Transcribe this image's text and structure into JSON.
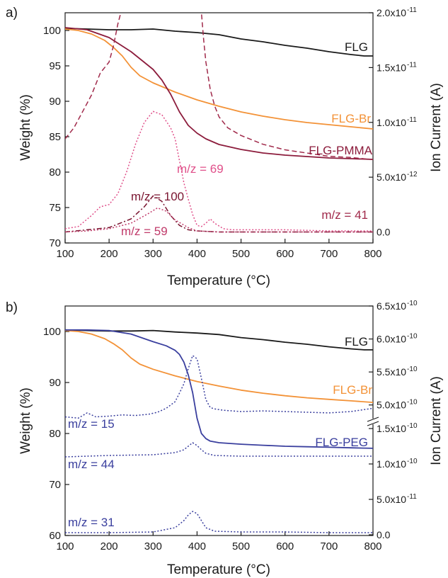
{
  "chart_data": [
    {
      "panel": "a)",
      "type": "line",
      "xlabel": "Temperature (°C)",
      "ylabel_left": "Weight (%)",
      "ylabel_right": "Ion Current (A)",
      "xlim": [
        100,
        800
      ],
      "ylim_left": [
        70,
        102.5
      ],
      "ylim_right": [
        -1e-12,
        2e-11
      ],
      "x_ticks": [
        100,
        200,
        300,
        400,
        500,
        600,
        700,
        800
      ],
      "y_left_ticks": [
        70,
        75,
        80,
        85,
        90,
        95,
        100
      ],
      "y_right_ticks": [
        0,
        5e-12,
        1e-11,
        1.5e-11,
        2e-11
      ],
      "y_right_tick_labels": [
        "0.0",
        "5.0x10",
        "1.0x10",
        "1.5x10",
        "2.0x10"
      ],
      "y_right_tick_exps": [
        "",
        "-12",
        "-11",
        "-11",
        "-11"
      ],
      "series": [
        {
          "name": "FLG",
          "axis": "left",
          "style": "solid",
          "color": "#1a1a1a",
          "x": [
            100,
            150,
            200,
            250,
            300,
            350,
            400,
            450,
            500,
            550,
            600,
            650,
            700,
            750,
            780,
            800
          ],
          "y": [
            100.3,
            100.2,
            100.1,
            100.1,
            100.2,
            99.9,
            99.7,
            99.4,
            98.8,
            98.4,
            97.9,
            97.5,
            97.0,
            96.6,
            96.4,
            96.4
          ]
        },
        {
          "name": "FLG-Br",
          "axis": "left",
          "style": "solid",
          "color": "#f39237",
          "x": [
            100,
            130,
            160,
            190,
            210,
            230,
            250,
            270,
            300,
            350,
            400,
            450,
            500,
            550,
            600,
            650,
            700,
            750,
            800
          ],
          "y": [
            100.2,
            100.0,
            99.5,
            98.6,
            97.6,
            96.4,
            94.8,
            93.6,
            92.6,
            91.3,
            90.2,
            89.3,
            88.5,
            87.9,
            87.4,
            87.0,
            86.7,
            86.4,
            86.1
          ]
        },
        {
          "name": "FLG-PMMA",
          "axis": "left",
          "style": "solid",
          "color": "#8c1c3c",
          "x": [
            100,
            150,
            200,
            250,
            280,
            300,
            320,
            340,
            360,
            380,
            400,
            420,
            450,
            500,
            550,
            600,
            650,
            700,
            750,
            800
          ],
          "y": [
            100.4,
            100.1,
            99.0,
            97.0,
            95.5,
            94.5,
            93.0,
            91.0,
            88.5,
            86.6,
            85.5,
            84.7,
            83.9,
            83.2,
            82.7,
            82.4,
            82.2,
            82.0,
            81.9,
            81.8
          ]
        },
        {
          "name": "m/z = 41",
          "axis": "right",
          "style": "dash",
          "color": "#a0294a",
          "x": [
            100,
            120,
            140,
            160,
            180,
            200,
            210,
            220,
            230,
            240,
            405,
            410,
            415,
            420,
            430,
            440,
            450,
            470,
            500,
            550,
            600,
            650,
            700,
            750,
            800
          ],
          "y": [
            8.5e-12,
            9.5e-12,
            1.1e-11,
            1.25e-11,
            1.45e-11,
            1.55e-11,
            1.7e-11,
            1.9e-11,
            2.05e-11,
            2.3e-11,
            2.3e-11,
            2e-11,
            1.75e-11,
            1.55e-11,
            1.3e-11,
            1.15e-11,
            1.05e-11,
            9.5e-12,
            8.8e-12,
            8e-12,
            7.5e-12,
            7.2e-12,
            6.9e-12,
            6.8e-12,
            6.6e-12
          ]
        },
        {
          "name": "m/z = 69",
          "axis": "right",
          "style": "dot",
          "color": "#e0508a",
          "x": [
            100,
            130,
            160,
            180,
            200,
            220,
            240,
            260,
            280,
            300,
            320,
            340,
            350,
            360,
            370,
            380,
            390,
            400,
            410,
            420,
            430,
            440,
            460,
            480,
            500,
            600,
            700,
            800
          ],
          "y": [
            3e-13,
            5e-13,
            1.5e-12,
            2.3e-12,
            2.5e-12,
            3.5e-12,
            5.5e-12,
            8e-12,
            1e-11,
            1.1e-11,
            1.07e-11,
            9.5e-12,
            8.5e-12,
            6.5e-12,
            4.5e-12,
            3e-12,
            1.6e-12,
            6e-13,
            5e-13,
            8e-13,
            1.2e-12,
            8e-13,
            3e-13,
            2e-13,
            2e-13,
            2e-13,
            1e-13,
            1e-13
          ]
        },
        {
          "name": "m/z = 100",
          "axis": "right",
          "style": "dashdot",
          "color": "#7a1530",
          "x": [
            100,
            150,
            200,
            250,
            280,
            300,
            320,
            340,
            360,
            380,
            400,
            450,
            500,
            600,
            700,
            800
          ],
          "y": [
            0,
            2e-13,
            4e-13,
            1.2e-12,
            2.3e-12,
            3.3e-12,
            2.8e-12,
            1.5e-12,
            6e-13,
            2e-13,
            1e-13,
            0,
            0,
            0,
            0,
            0
          ]
        },
        {
          "name": "m/z = 59",
          "axis": "right",
          "style": "dot",
          "color": "#c03a6a",
          "x": [
            100,
            150,
            200,
            250,
            290,
            310,
            330,
            350,
            380,
            400,
            450,
            500,
            600,
            700,
            800
          ],
          "y": [
            0,
            1e-13,
            3e-13,
            8e-13,
            1.7e-12,
            2.2e-12,
            1.9e-12,
            1.1e-12,
            4e-13,
            1e-13,
            0,
            0,
            0,
            0,
            0
          ]
        }
      ],
      "annotations": {
        "flg": "FLG",
        "flg_br": "FLG-Br",
        "flg_pmma": "FLG-PMMA",
        "mz69": "m/z = 69",
        "mz100": "m/z = 100",
        "mz59": "m/z = 59",
        "mz41": "m/z = 41"
      }
    },
    {
      "panel": "b)",
      "type": "line",
      "xlabel": "Temperature (°C)",
      "ylabel_left": "Weight (%)",
      "ylabel_right": "Ion Current (A)",
      "xlim": [
        100,
        800
      ],
      "ylim_left": [
        60,
        105
      ],
      "right_axis_broken": true,
      "x_ticks": [
        100,
        200,
        300,
        400,
        500,
        600,
        700,
        800
      ],
      "y_left_ticks": [
        60,
        70,
        80,
        90,
        100
      ],
      "y_right_upper_ticks": [
        5e-10,
        5.5e-10,
        6e-10,
        6.5e-10
      ],
      "y_right_upper_tick_labels": [
        "5.0x10",
        "5.5x10",
        "6.0x10",
        "6.5x10"
      ],
      "y_right_upper_tick_exps": [
        "-10",
        "-10",
        "-10",
        "-10"
      ],
      "y_right_lower_ticks": [
        0,
        5e-11,
        1e-10,
        1.5e-10
      ],
      "y_right_lower_tick_labels": [
        "0.0",
        "5.0x10",
        "1.0x10",
        "1.5x10"
      ],
      "y_right_lower_tick_exps": [
        "",
        "-11",
        "-10",
        "-10"
      ],
      "series": [
        {
          "name": "FLG",
          "axis": "left",
          "style": "solid",
          "color": "#1a1a1a",
          "x": [
            100,
            150,
            200,
            250,
            300,
            350,
            400,
            450,
            500,
            550,
            600,
            650,
            700,
            750,
            780,
            800
          ],
          "y": [
            100.3,
            100.2,
            100.1,
            100.1,
            100.2,
            99.9,
            99.7,
            99.4,
            98.8,
            98.4,
            97.9,
            97.5,
            97.0,
            96.6,
            96.4,
            96.4
          ]
        },
        {
          "name": "FLG-Br",
          "axis": "left",
          "style": "solid",
          "color": "#f39237",
          "x": [
            100,
            130,
            160,
            190,
            210,
            230,
            250,
            270,
            300,
            350,
            400,
            450,
            500,
            550,
            600,
            650,
            700,
            750,
            800
          ],
          "y": [
            100.2,
            100.0,
            99.5,
            98.6,
            97.6,
            96.4,
            94.8,
            93.6,
            92.6,
            91.3,
            90.2,
            89.3,
            88.5,
            87.9,
            87.4,
            87.0,
            86.7,
            86.4,
            86.1
          ]
        },
        {
          "name": "FLG-PEG",
          "axis": "left",
          "style": "solid",
          "color": "#3a3f9e",
          "x": [
            100,
            150,
            200,
            250,
            300,
            330,
            350,
            360,
            370,
            380,
            390,
            395,
            400,
            410,
            420,
            430,
            450,
            500,
            550,
            600,
            650,
            700,
            750,
            800
          ],
          "y": [
            100.3,
            100.3,
            100.2,
            99.5,
            98.0,
            97.2,
            96.3,
            95.5,
            94.0,
            91.5,
            88.0,
            85.5,
            83.0,
            80.0,
            79.0,
            78.5,
            78.2,
            77.9,
            77.7,
            77.5,
            77.4,
            77.3,
            77.2,
            77.1
          ]
        },
        {
          "name": "m/z = 15",
          "axis": "right_upper",
          "style": "dot",
          "color": "#3a3f9e",
          "x": [
            100,
            130,
            150,
            170,
            200,
            230,
            260,
            290,
            310,
            330,
            350,
            360,
            370,
            380,
            390,
            400,
            410,
            420,
            430,
            440,
            460,
            500,
            550,
            600,
            650,
            700,
            750,
            800
          ],
          "y": [
            4.82e-10,
            4.8e-10,
            4.88e-10,
            4.82e-10,
            4.83e-10,
            4.85e-10,
            4.84e-10,
            4.86e-10,
            4.89e-10,
            4.95e-10,
            5.05e-10,
            5.18e-10,
            5.32e-10,
            5.55e-10,
            5.75e-10,
            5.7e-10,
            5.4e-10,
            5.08e-10,
            4.96e-10,
            4.94e-10,
            4.92e-10,
            4.9e-10,
            4.91e-10,
            4.9e-10,
            4.89e-10,
            4.88e-10,
            4.9e-10,
            4.95e-10
          ]
        },
        {
          "name": "m/z = 44",
          "axis": "right_lower",
          "style": "dot",
          "color": "#3a3f9e",
          "x": [
            100,
            200,
            300,
            350,
            370,
            380,
            390,
            400,
            410,
            420,
            440,
            500,
            600,
            700,
            800
          ],
          "y": [
            1.1e-10,
            1.12e-10,
            1.13e-10,
            1.16e-10,
            1.2e-10,
            1.25e-10,
            1.3e-10,
            1.26e-10,
            1.2e-10,
            1.15e-10,
            1.12e-10,
            1.11e-10,
            1.11e-10,
            1.11e-10,
            1.11e-10
          ]
        },
        {
          "name": "m/z = 31",
          "axis": "right_lower",
          "style": "dot",
          "color": "#3a3f9e",
          "x": [
            100,
            200,
            300,
            350,
            370,
            380,
            390,
            400,
            410,
            420,
            440,
            500,
            600,
            700,
            800
          ],
          "y": [
            3e-12,
            3e-12,
            4e-12,
            1e-11,
            2e-11,
            2.8e-11,
            3.3e-11,
            3e-11,
            2e-11,
            1e-11,
            5e-12,
            4e-12,
            4e-12,
            3e-12,
            3e-12
          ]
        }
      ],
      "annotations": {
        "flg": "FLG",
        "flg_br": "FLG-Br",
        "flg_peg": "FLG-PEG",
        "mz15": "m/z = 15",
        "mz44": "m/z = 44",
        "mz31": "m/z = 31"
      }
    }
  ]
}
